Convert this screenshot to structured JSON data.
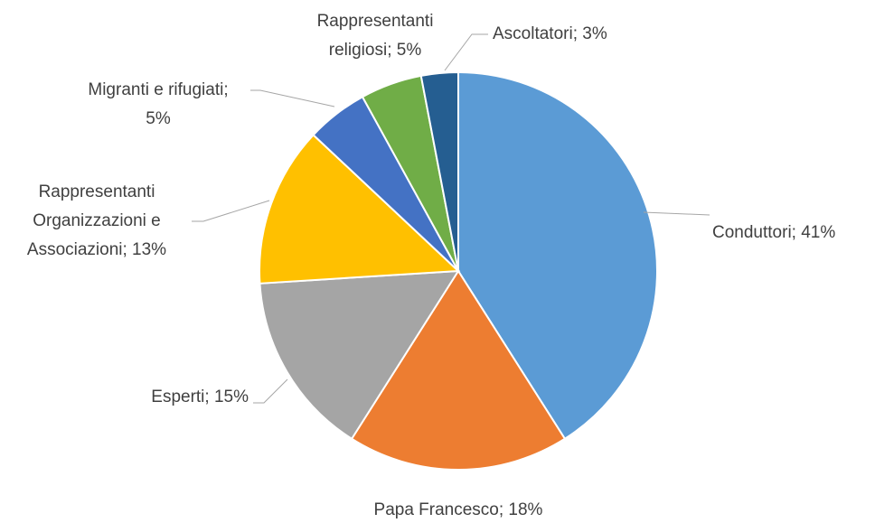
{
  "chart_data": {
    "type": "pie",
    "labels": [
      "Conduttori; 41%",
      "Papa Francesco; 18%",
      "Esperti; 15%",
      "Rappresentanti\nOrganizzazioni e\nAssociazioni; 13%",
      "Migranti e rifugiati;\n5%",
      "Rappresentanti\nreligiosi; 5%",
      "Ascoltatori; 3%"
    ],
    "values": [
      41,
      18,
      15,
      13,
      5,
      5,
      3
    ],
    "colors": [
      "#5b9bd5",
      "#ed7d31",
      "#a5a5a5",
      "#ffc000",
      "#4472c4",
      "#70ad47",
      "#255e91"
    ]
  }
}
